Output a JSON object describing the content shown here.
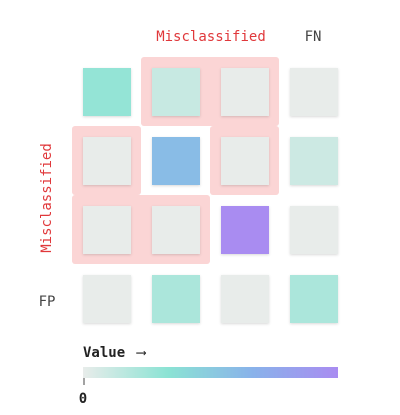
{
  "chart_data": {
    "type": "heatmap",
    "rows": 4,
    "cols": 4,
    "cells": [
      [
        0.3,
        0.12,
        0.0,
        0.0
      ],
      [
        0.0,
        0.6,
        0.0,
        0.1
      ],
      [
        0.0,
        0.0,
        1.0,
        0.0
      ],
      [
        0.0,
        0.22,
        0.0,
        0.22
      ]
    ],
    "top_labels": [
      {
        "text": "Misclassified",
        "color": "#e0383b"
      },
      {
        "text": "FN",
        "color": "#444444"
      }
    ],
    "side_labels": [
      {
        "text": "Misclassified",
        "color": "#e0383b"
      },
      {
        "text": "FP",
        "color": "#444444"
      }
    ],
    "highlight_color": "#fbd5d5",
    "misclassified_color": "#e0383b",
    "legend": {
      "title": "Value",
      "arrow": "⟶",
      "tick_label": "0",
      "gradient": [
        "#e8ecea",
        "#8be3d4",
        "#89b2ea",
        "#a98cf1"
      ]
    }
  }
}
